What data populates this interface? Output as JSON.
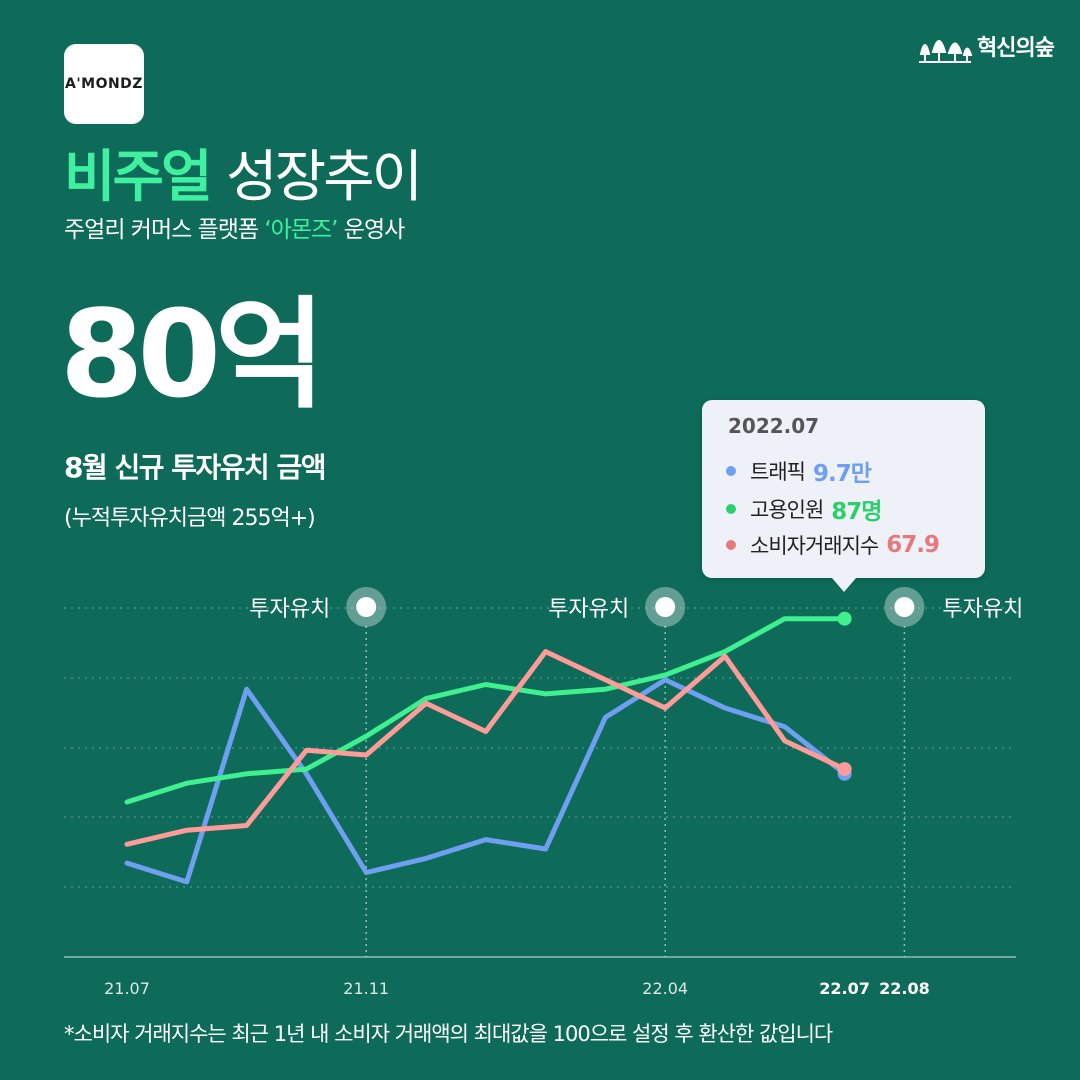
{
  "brand": {
    "logo_text": "A'MONDZ",
    "site_name": "혁신의숲"
  },
  "header": {
    "title_highlight": "비주얼",
    "title_rest": "성장추이",
    "subtitle_prefix": "주얼리 커머스 플랫폼 ",
    "subtitle_highlight": "‘아몬즈’",
    "subtitle_suffix": " 운영사"
  },
  "headline": {
    "amount": "80억",
    "caption": "8월 신규 투자유치 금액",
    "note": "(누적투자유치금액 255억+)"
  },
  "tooltip": {
    "date": "2022.07",
    "rows": [
      {
        "label": "트래픽",
        "value": "9.7만",
        "color": "#6f9ff0"
      },
      {
        "label": "고용인원",
        "value": "87명",
        "color": "#2ccf6c"
      },
      {
        "label": "소비자거래지수",
        "value": "67.9",
        "color": "#e8797a"
      }
    ]
  },
  "footnote": "*소비자 거래지수는 최근 1년 내 소비자 거래액의 최대값을 100으로 설정 후 환산한 값입니다",
  "chart_data": {
    "type": "line",
    "x": [
      "21.07",
      "21.08",
      "21.09",
      "21.10",
      "21.11",
      "21.12",
      "22.01",
      "22.02",
      "22.03",
      "22.04",
      "22.05",
      "22.06",
      "22.07"
    ],
    "x_tick_labels": [
      "21.07",
      "21.11",
      "22.04",
      "22.07",
      "22.08"
    ],
    "bold_tick_labels": [
      "22.07",
      "22.08"
    ],
    "ylim": [
      0,
      100
    ],
    "grid": true,
    "series": [
      {
        "name": "트래픽",
        "color": "#6f9ff0",
        "values": [
          27,
          23,
          64,
          46,
          25,
          28,
          32,
          30,
          58,
          66,
          60,
          56,
          46
        ]
      },
      {
        "name": "고용인원",
        "color": "#3ff08e",
        "values": [
          40,
          44,
          46,
          47,
          54,
          62,
          65,
          63,
          64,
          67,
          72,
          79,
          79
        ]
      },
      {
        "name": "소비자거래지수",
        "color": "#ff9b98",
        "values": [
          31,
          34,
          35,
          51,
          50,
          61,
          55,
          72,
          66,
          60,
          71,
          53,
          47
        ]
      }
    ],
    "annotations": [
      {
        "x": "21.11",
        "label": "투자유치"
      },
      {
        "x": "22.04",
        "label": "투자유치"
      },
      {
        "x": "22.08",
        "label": "투자유치"
      }
    ]
  }
}
